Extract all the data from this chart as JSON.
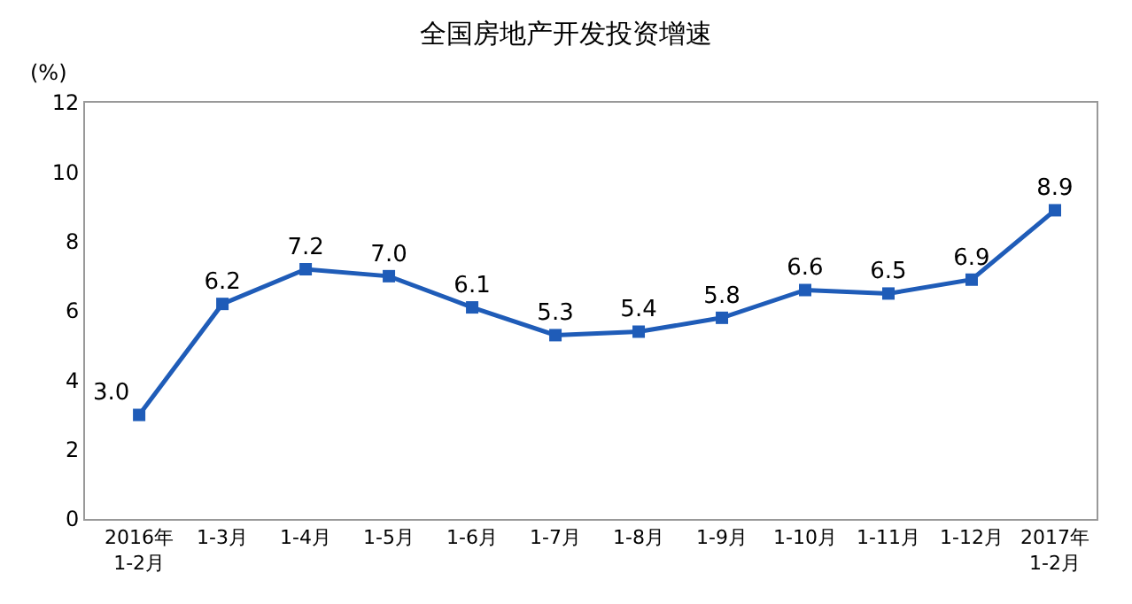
{
  "chart_data": {
    "type": "line",
    "title": "全国房地产开发投资增速",
    "ylabel": "(%)",
    "categories": [
      "2016年\n1-2月",
      "1-3月",
      "1-4月",
      "1-5月",
      "1-6月",
      "1-7月",
      "1-8月",
      "1-9月",
      "1-10月",
      "1-11月",
      "1-12月",
      "2017年\n1-2月"
    ],
    "series": [
      {
        "color": "#1f5cb8",
        "values": [
          3.0,
          6.2,
          7.2,
          7.0,
          6.1,
          5.3,
          5.4,
          5.8,
          6.6,
          6.5,
          6.9,
          8.9
        ],
        "value_labels": [
          "3.0",
          "6.2",
          "7.2",
          "7.0",
          "6.1",
          "5.3",
          "5.4",
          "5.8",
          "6.6",
          "6.5",
          "6.9",
          "8.9"
        ]
      }
    ],
    "ylim": [
      0,
      12
    ],
    "yticks": [
      0,
      2,
      4,
      6,
      8,
      10,
      12
    ],
    "grid": false,
    "marker": "square",
    "line_style": "solid"
  }
}
